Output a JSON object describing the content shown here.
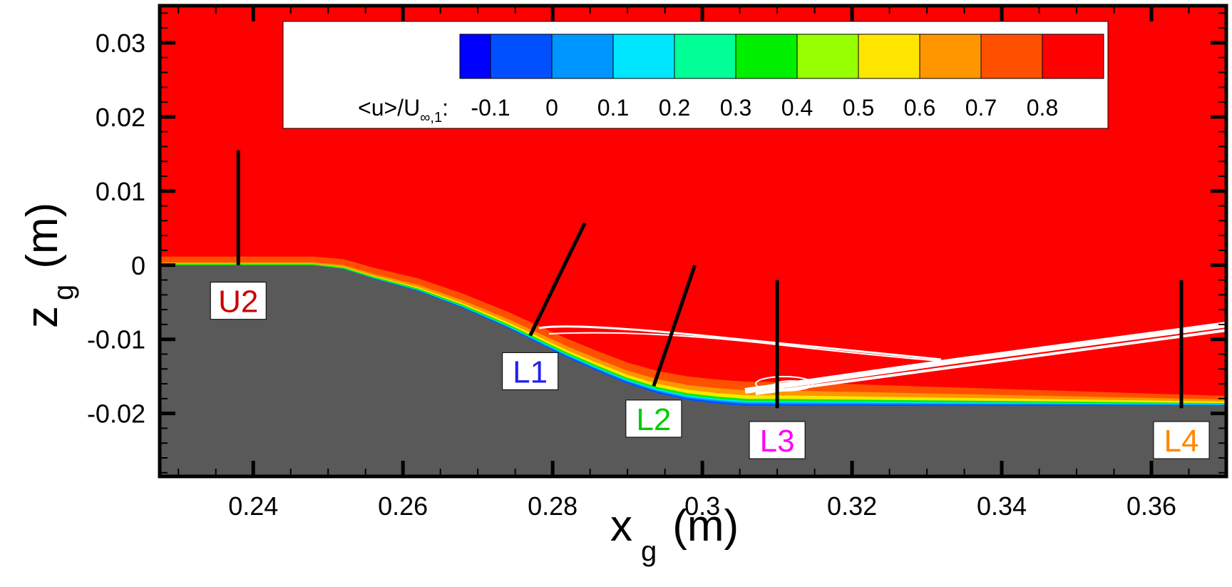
{
  "chart_data": {
    "type": "heatmap",
    "title": "",
    "xlabel": {
      "main": "x",
      "sub": "g",
      "unit": "(m)"
    },
    "ylabel": {
      "main": "z",
      "sub": "g",
      "unit": "(m)"
    },
    "xlim": [
      0.2275,
      0.37
    ],
    "ylim": [
      -0.0285,
      0.035
    ],
    "x_ticks": [
      0.24,
      0.26,
      0.28,
      0.3,
      0.32,
      0.34,
      0.36
    ],
    "x_tick_labels": [
      "0.24",
      "0.26",
      "0.28",
      "0.3",
      "0.32",
      "0.34",
      "0.36"
    ],
    "y_ticks": [
      0.03,
      0.02,
      0.01,
      0,
      -0.01,
      -0.02
    ],
    "y_tick_labels": [
      "0.03",
      "0.02",
      "0.01",
      "0",
      "-0.01",
      "-0.02"
    ],
    "colorbar": {
      "label": {
        "prefix": "<u>/U",
        "sub": "∞,1",
        "suffix": ":"
      },
      "levels": [
        -0.1,
        0,
        0.1,
        0.2,
        0.3,
        0.4,
        0.5,
        0.6,
        0.7,
        0.8
      ],
      "level_labels": [
        "-0.1",
        "0",
        "0.1",
        "0.2",
        "0.3",
        "0.4",
        "0.5",
        "0.6",
        "0.7",
        "0.8"
      ],
      "colors": [
        "#0000ff",
        "#0050ff",
        "#0096ff",
        "#00e6ff",
        "#00ff96",
        "#00f000",
        "#96ff00",
        "#ffe600",
        "#ff9600",
        "#ff5000",
        "#ff0000"
      ]
    },
    "freestream_color": "#ff0000",
    "solid_color": "#595959",
    "wall_profile": [
      [
        0.2275,
        0.0
      ],
      [
        0.248,
        0.0
      ],
      [
        0.252,
        -0.0005
      ],
      [
        0.256,
        -0.0018
      ],
      [
        0.262,
        -0.0035
      ],
      [
        0.268,
        -0.0058
      ],
      [
        0.274,
        -0.0085
      ],
      [
        0.278,
        -0.0105
      ],
      [
        0.282,
        -0.0125
      ],
      [
        0.286,
        -0.0143
      ],
      [
        0.29,
        -0.016
      ],
      [
        0.294,
        -0.0173
      ],
      [
        0.298,
        -0.0182
      ],
      [
        0.302,
        -0.0187
      ],
      [
        0.306,
        -0.019
      ],
      [
        0.31,
        -0.019
      ],
      [
        0.37,
        -0.019
      ]
    ],
    "probes": [
      {
        "name": "U2",
        "color": "#cc0000",
        "line": [
          [
            0.238,
            0.0
          ],
          [
            0.238,
            0.0155
          ]
        ],
        "label_at": [
          0.238,
          -0.0048
        ]
      },
      {
        "name": "L1",
        "color": "#2222ee",
        "line": [
          [
            0.277,
            -0.0095
          ],
          [
            0.2843,
            0.0057
          ]
        ],
        "label_at": [
          0.277,
          -0.0143
        ]
      },
      {
        "name": "L2",
        "color": "#00cc00",
        "line": [
          [
            0.2935,
            -0.0163
          ],
          [
            0.299,
            0.0
          ]
        ],
        "label_at": [
          0.2935,
          -0.0207
        ]
      },
      {
        "name": "L3",
        "color": "#ff00ff",
        "line": [
          [
            0.31,
            -0.0193
          ],
          [
            0.31,
            -0.002
          ]
        ],
        "label_at": [
          0.31,
          -0.0236
        ]
      },
      {
        "name": "L4",
        "color": "#ff8800",
        "line": [
          [
            0.364,
            -0.0193
          ],
          [
            0.364,
            -0.002
          ]
        ],
        "label_at": [
          0.364,
          -0.0236
        ]
      }
    ]
  }
}
